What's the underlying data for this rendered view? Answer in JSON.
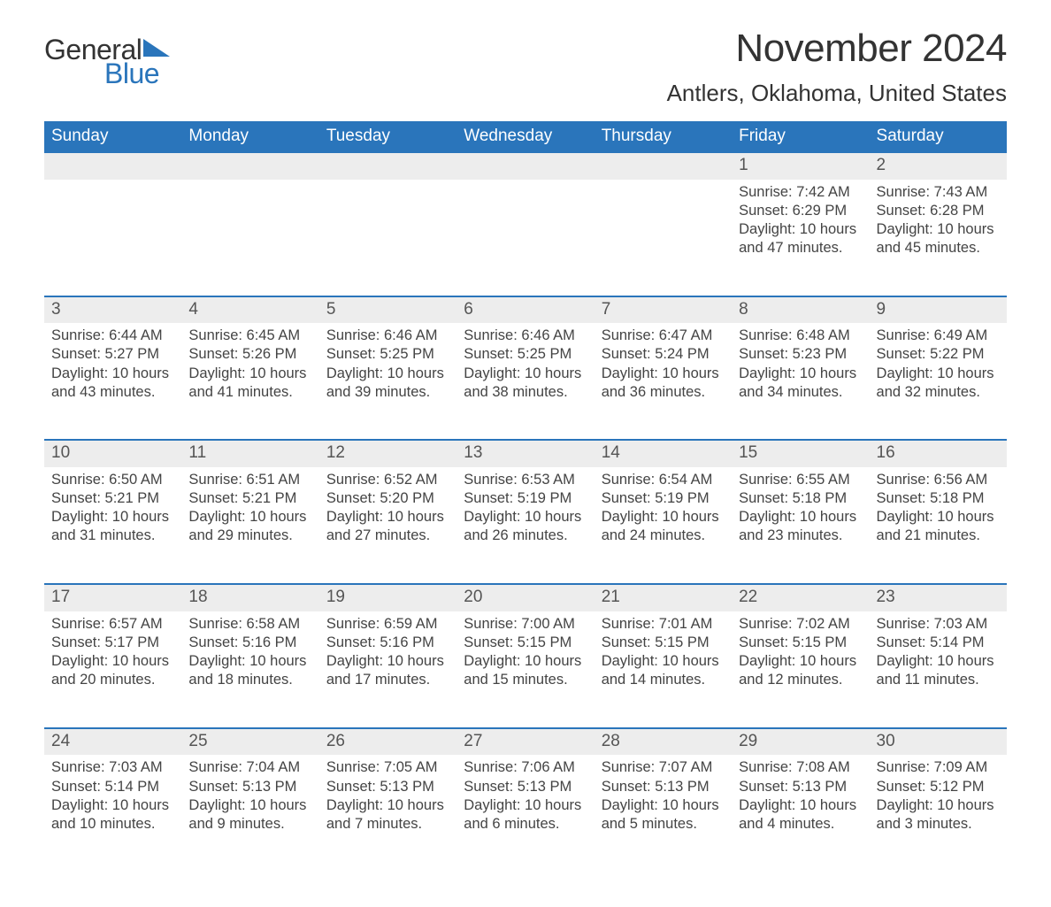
{
  "brand": {
    "general": "General",
    "blue": "Blue",
    "logo_color": "#2a75bb"
  },
  "title": "November 2024",
  "location": "Antlers, Oklahoma, United States",
  "colors": {
    "header_bg": "#2a75bb",
    "header_text": "#ffffff",
    "row_divider": "#2a75bb",
    "daynum_bg": "#ededed",
    "daynum_text": "#555555",
    "body_text": "#444444",
    "background": "#ffffff"
  },
  "fonts": {
    "title_size_pt": 33,
    "location_size_pt": 20,
    "header_size_pt": 14,
    "daynum_size_pt": 14,
    "detail_size_pt": 12
  },
  "day_headers": [
    "Sunday",
    "Monday",
    "Tuesday",
    "Wednesday",
    "Thursday",
    "Friday",
    "Saturday"
  ],
  "weeks": [
    [
      null,
      null,
      null,
      null,
      null,
      {
        "n": "1",
        "sunrise": "Sunrise: 7:42 AM",
        "sunset": "Sunset: 6:29 PM",
        "day1": "Daylight: 10 hours",
        "day2": "and 47 minutes."
      },
      {
        "n": "2",
        "sunrise": "Sunrise: 7:43 AM",
        "sunset": "Sunset: 6:28 PM",
        "day1": "Daylight: 10 hours",
        "day2": "and 45 minutes."
      }
    ],
    [
      {
        "n": "3",
        "sunrise": "Sunrise: 6:44 AM",
        "sunset": "Sunset: 5:27 PM",
        "day1": "Daylight: 10 hours",
        "day2": "and 43 minutes."
      },
      {
        "n": "4",
        "sunrise": "Sunrise: 6:45 AM",
        "sunset": "Sunset: 5:26 PM",
        "day1": "Daylight: 10 hours",
        "day2": "and 41 minutes."
      },
      {
        "n": "5",
        "sunrise": "Sunrise: 6:46 AM",
        "sunset": "Sunset: 5:25 PM",
        "day1": "Daylight: 10 hours",
        "day2": "and 39 minutes."
      },
      {
        "n": "6",
        "sunrise": "Sunrise: 6:46 AM",
        "sunset": "Sunset: 5:25 PM",
        "day1": "Daylight: 10 hours",
        "day2": "and 38 minutes."
      },
      {
        "n": "7",
        "sunrise": "Sunrise: 6:47 AM",
        "sunset": "Sunset: 5:24 PM",
        "day1": "Daylight: 10 hours",
        "day2": "and 36 minutes."
      },
      {
        "n": "8",
        "sunrise": "Sunrise: 6:48 AM",
        "sunset": "Sunset: 5:23 PM",
        "day1": "Daylight: 10 hours",
        "day2": "and 34 minutes."
      },
      {
        "n": "9",
        "sunrise": "Sunrise: 6:49 AM",
        "sunset": "Sunset: 5:22 PM",
        "day1": "Daylight: 10 hours",
        "day2": "and 32 minutes."
      }
    ],
    [
      {
        "n": "10",
        "sunrise": "Sunrise: 6:50 AM",
        "sunset": "Sunset: 5:21 PM",
        "day1": "Daylight: 10 hours",
        "day2": "and 31 minutes."
      },
      {
        "n": "11",
        "sunrise": "Sunrise: 6:51 AM",
        "sunset": "Sunset: 5:21 PM",
        "day1": "Daylight: 10 hours",
        "day2": "and 29 minutes."
      },
      {
        "n": "12",
        "sunrise": "Sunrise: 6:52 AM",
        "sunset": "Sunset: 5:20 PM",
        "day1": "Daylight: 10 hours",
        "day2": "and 27 minutes."
      },
      {
        "n": "13",
        "sunrise": "Sunrise: 6:53 AM",
        "sunset": "Sunset: 5:19 PM",
        "day1": "Daylight: 10 hours",
        "day2": "and 26 minutes."
      },
      {
        "n": "14",
        "sunrise": "Sunrise: 6:54 AM",
        "sunset": "Sunset: 5:19 PM",
        "day1": "Daylight: 10 hours",
        "day2": "and 24 minutes."
      },
      {
        "n": "15",
        "sunrise": "Sunrise: 6:55 AM",
        "sunset": "Sunset: 5:18 PM",
        "day1": "Daylight: 10 hours",
        "day2": "and 23 minutes."
      },
      {
        "n": "16",
        "sunrise": "Sunrise: 6:56 AM",
        "sunset": "Sunset: 5:18 PM",
        "day1": "Daylight: 10 hours",
        "day2": "and 21 minutes."
      }
    ],
    [
      {
        "n": "17",
        "sunrise": "Sunrise: 6:57 AM",
        "sunset": "Sunset: 5:17 PM",
        "day1": "Daylight: 10 hours",
        "day2": "and 20 minutes."
      },
      {
        "n": "18",
        "sunrise": "Sunrise: 6:58 AM",
        "sunset": "Sunset: 5:16 PM",
        "day1": "Daylight: 10 hours",
        "day2": "and 18 minutes."
      },
      {
        "n": "19",
        "sunrise": "Sunrise: 6:59 AM",
        "sunset": "Sunset: 5:16 PM",
        "day1": "Daylight: 10 hours",
        "day2": "and 17 minutes."
      },
      {
        "n": "20",
        "sunrise": "Sunrise: 7:00 AM",
        "sunset": "Sunset: 5:15 PM",
        "day1": "Daylight: 10 hours",
        "day2": "and 15 minutes."
      },
      {
        "n": "21",
        "sunrise": "Sunrise: 7:01 AM",
        "sunset": "Sunset: 5:15 PM",
        "day1": "Daylight: 10 hours",
        "day2": "and 14 minutes."
      },
      {
        "n": "22",
        "sunrise": "Sunrise: 7:02 AM",
        "sunset": "Sunset: 5:15 PM",
        "day1": "Daylight: 10 hours",
        "day2": "and 12 minutes."
      },
      {
        "n": "23",
        "sunrise": "Sunrise: 7:03 AM",
        "sunset": "Sunset: 5:14 PM",
        "day1": "Daylight: 10 hours",
        "day2": "and 11 minutes."
      }
    ],
    [
      {
        "n": "24",
        "sunrise": "Sunrise: 7:03 AM",
        "sunset": "Sunset: 5:14 PM",
        "day1": "Daylight: 10 hours",
        "day2": "and 10 minutes."
      },
      {
        "n": "25",
        "sunrise": "Sunrise: 7:04 AM",
        "sunset": "Sunset: 5:13 PM",
        "day1": "Daylight: 10 hours",
        "day2": "and 9 minutes."
      },
      {
        "n": "26",
        "sunrise": "Sunrise: 7:05 AM",
        "sunset": "Sunset: 5:13 PM",
        "day1": "Daylight: 10 hours",
        "day2": "and 7 minutes."
      },
      {
        "n": "27",
        "sunrise": "Sunrise: 7:06 AM",
        "sunset": "Sunset: 5:13 PM",
        "day1": "Daylight: 10 hours",
        "day2": "and 6 minutes."
      },
      {
        "n": "28",
        "sunrise": "Sunrise: 7:07 AM",
        "sunset": "Sunset: 5:13 PM",
        "day1": "Daylight: 10 hours",
        "day2": "and 5 minutes."
      },
      {
        "n": "29",
        "sunrise": "Sunrise: 7:08 AM",
        "sunset": "Sunset: 5:13 PM",
        "day1": "Daylight: 10 hours",
        "day2": "and 4 minutes."
      },
      {
        "n": "30",
        "sunrise": "Sunrise: 7:09 AM",
        "sunset": "Sunset: 5:12 PM",
        "day1": "Daylight: 10 hours",
        "day2": "and 3 minutes."
      }
    ]
  ]
}
